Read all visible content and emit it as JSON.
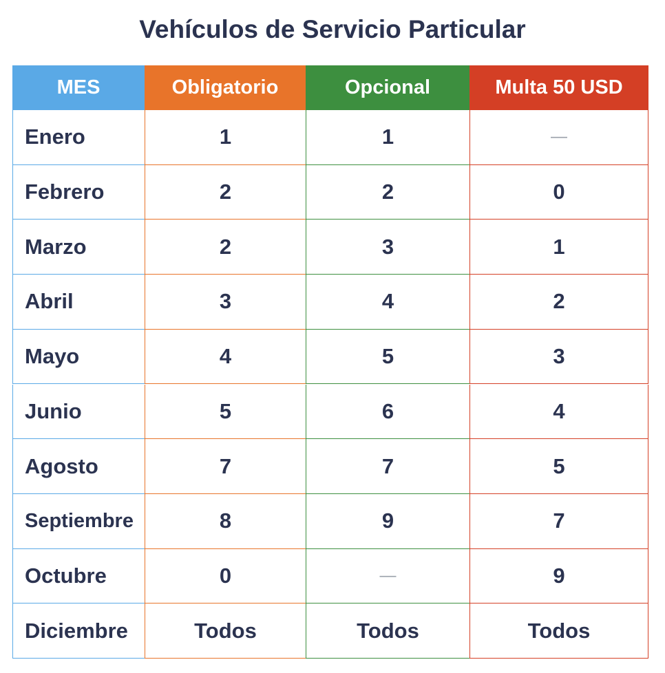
{
  "title": "Vehículos de Servicio Particular",
  "table": {
    "header": [
      "MES",
      "Obligatorio",
      "Opcional",
      "Multa 50 USD"
    ],
    "rows": [
      [
        "Enero",
        "1",
        "1",
        "—"
      ],
      [
        "Febrero",
        "2",
        "2",
        "0"
      ],
      [
        "Marzo",
        "2",
        "3",
        "1"
      ],
      [
        "Abril",
        "3",
        "4",
        "2"
      ],
      [
        "Mayo",
        "4",
        "5",
        "3"
      ],
      [
        "Junio",
        "5",
        "6",
        "4"
      ],
      [
        "Agosto",
        "7",
        "7",
        "5"
      ],
      [
        "Septiembre",
        "8",
        "9",
        "7"
      ],
      [
        "Octubre",
        "0",
        "—",
        "9"
      ],
      [
        "Diciembre",
        "Todos",
        "Todos",
        "Todos"
      ]
    ]
  }
}
